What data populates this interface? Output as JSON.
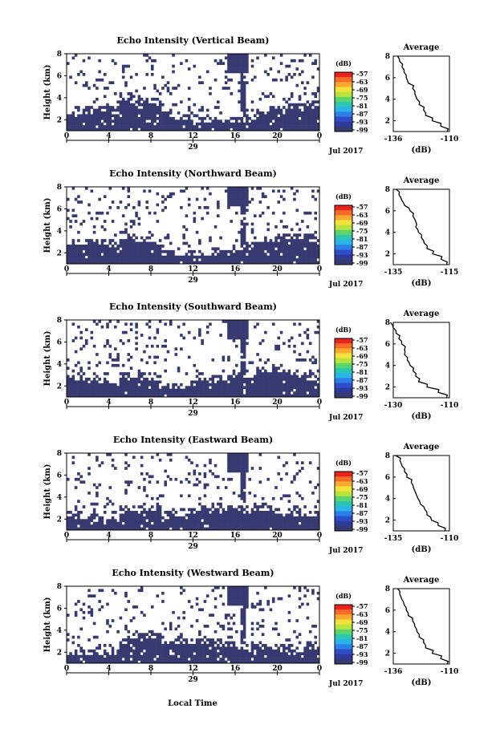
{
  "chart_data": {
    "type": "heatmap",
    "date_label": "Jul 2017",
    "day_label": "29",
    "x_label": "Local Time",
    "x_ticks": [
      "0",
      "4",
      "8",
      "12",
      "16",
      "20",
      "0"
    ],
    "x_range_hours": [
      0,
      24
    ],
    "y_label": "Height (km)",
    "y_ticks": [
      "2",
      "4",
      "6",
      "8"
    ],
    "y_range_km": [
      1,
      8
    ],
    "colorbar_unit": "(dB)",
    "colorbar_ticks": [
      "-57",
      "-63",
      "-69",
      "-75",
      "-81",
      "-87",
      "-93",
      "-99"
    ],
    "colorbar_colors": [
      "#e8231e",
      "#f86a28",
      "#f8aa30",
      "#f2e33a",
      "#b8e33e",
      "#5bd46b",
      "#2bc6b0",
      "#29b4ea",
      "#2a7fe8",
      "#2f4dc8",
      "#2e3a9a",
      "#363a72"
    ],
    "background_color": "#373a70",
    "avg_title": "Average",
    "avg_xlabel": "(dB)",
    "panels": [
      {
        "title": "Echo Intensity (Vertical Beam)",
        "avg_xticks": [
          "-136",
          "-110"
        ],
        "avg_xrange": [
          -136,
          -110
        ],
        "avg_profile": [
          [
            1.0,
            -111
          ],
          [
            1.5,
            -114
          ],
          [
            2.0,
            -118
          ],
          [
            2.5,
            -121
          ],
          [
            3.0,
            -122
          ],
          [
            3.5,
            -124
          ],
          [
            4.0,
            -125
          ],
          [
            4.5,
            -126
          ],
          [
            5.0,
            -127
          ],
          [
            5.5,
            -129
          ],
          [
            6.0,
            -130
          ],
          [
            6.5,
            -131
          ],
          [
            7.0,
            -132
          ],
          [
            7.5,
            -133
          ],
          [
            8.0,
            -134
          ]
        ]
      },
      {
        "title": "Echo Intensity (Northward Beam)",
        "avg_xticks": [
          "-135",
          "-115"
        ],
        "avg_xrange": [
          -135,
          -115
        ],
        "avg_profile": [
          [
            1.0,
            -116
          ],
          [
            1.5,
            -118
          ],
          [
            2.0,
            -121
          ],
          [
            2.5,
            -123
          ],
          [
            3.0,
            -124
          ],
          [
            3.5,
            -125
          ],
          [
            4.0,
            -126
          ],
          [
            4.5,
            -127
          ],
          [
            5.0,
            -127
          ],
          [
            5.5,
            -128
          ],
          [
            6.0,
            -129
          ],
          [
            6.5,
            -131
          ],
          [
            7.0,
            -132
          ],
          [
            7.5,
            -133
          ],
          [
            8.0,
            -134
          ]
        ]
      },
      {
        "title": "Echo Intensity (Southward Beam)",
        "avg_xticks": [
          "-130",
          "-110"
        ],
        "avg_xrange": [
          -130,
          -110
        ],
        "avg_profile": [
          [
            1.0,
            -111
          ],
          [
            1.5,
            -114
          ],
          [
            2.0,
            -118
          ],
          [
            2.5,
            -121
          ],
          [
            3.0,
            -122
          ],
          [
            3.5,
            -123
          ],
          [
            4.0,
            -124
          ],
          [
            4.5,
            -125
          ],
          [
            5.0,
            -126
          ],
          [
            5.5,
            -126
          ],
          [
            6.0,
            -127
          ],
          [
            6.5,
            -128
          ],
          [
            7.0,
            -129
          ],
          [
            7.5,
            -130
          ],
          [
            8.0,
            -131
          ]
        ]
      },
      {
        "title": "Echo Intensity (Eastward Beam)",
        "avg_xticks": [
          "-135",
          "-110"
        ],
        "avg_xrange": [
          -135,
          -110
        ],
        "avg_profile": [
          [
            1.0,
            -112
          ],
          [
            1.5,
            -115
          ],
          [
            2.0,
            -118
          ],
          [
            2.5,
            -120
          ],
          [
            3.0,
            -121
          ],
          [
            3.5,
            -123
          ],
          [
            4.0,
            -124
          ],
          [
            4.5,
            -125
          ],
          [
            5.0,
            -126
          ],
          [
            5.5,
            -127
          ],
          [
            6.0,
            -129
          ],
          [
            6.5,
            -130
          ],
          [
            7.0,
            -131
          ],
          [
            7.5,
            -132
          ],
          [
            8.0,
            -134
          ]
        ]
      },
      {
        "title": "Echo Intensity (Westward Beam)",
        "avg_xticks": [
          "-136",
          "-110"
        ],
        "avg_xrange": [
          -136,
          -110
        ],
        "avg_profile": [
          [
            1.0,
            -111
          ],
          [
            1.5,
            -114
          ],
          [
            2.0,
            -118
          ],
          [
            2.5,
            -121
          ],
          [
            3.0,
            -122
          ],
          [
            3.5,
            -124
          ],
          [
            4.0,
            -125
          ],
          [
            4.5,
            -126
          ],
          [
            5.0,
            -127
          ],
          [
            5.5,
            -129
          ],
          [
            6.0,
            -130
          ],
          [
            6.5,
            -131
          ],
          [
            7.0,
            -132
          ],
          [
            7.5,
            -133
          ],
          [
            8.0,
            -134
          ]
        ]
      }
    ]
  }
}
